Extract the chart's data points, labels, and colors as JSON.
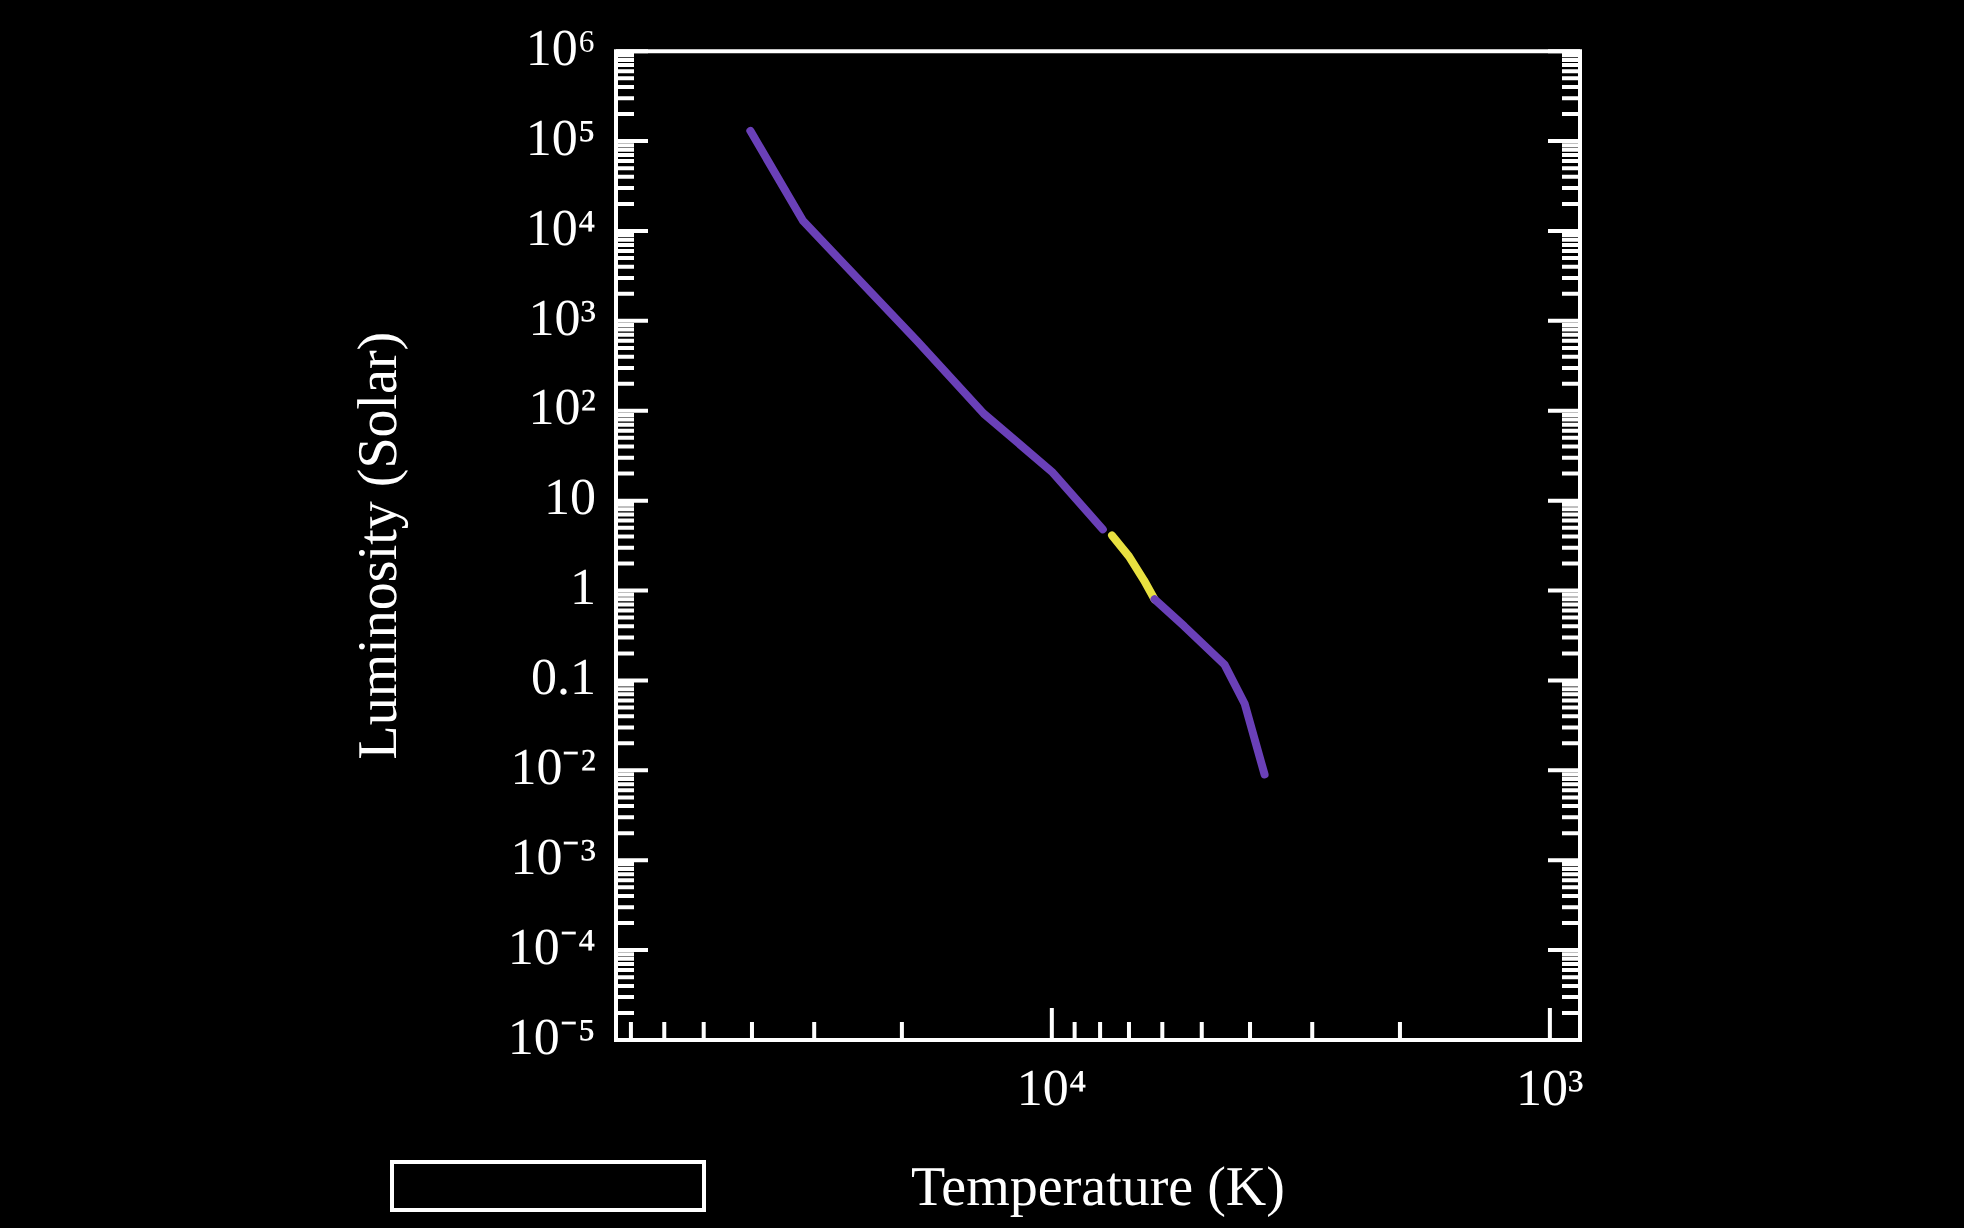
{
  "chart_data": {
    "type": "line",
    "xlabel": "Temperature (K)",
    "ylabel": "Luminosity (Solar)",
    "log": "xy",
    "marker": "none",
    "line_style": "solid",
    "grid": false,
    "legend": false,
    "xlim": [
      75000,
      870
    ],
    "xticks": [
      {
        "value": 70000,
        "label": null
      },
      {
        "value": 60000,
        "label": null
      },
      {
        "value": 50000,
        "label": null
      },
      {
        "value": 40000,
        "label": null
      },
      {
        "value": 30000,
        "label": null
      },
      {
        "value": 20000,
        "label": null
      },
      {
        "value": 10000,
        "label": "10⁴"
      },
      {
        "value": 9000,
        "label": null
      },
      {
        "value": 8000,
        "label": null
      },
      {
        "value": 7000,
        "label": null
      },
      {
        "value": 6000,
        "label": null
      },
      {
        "value": 5000,
        "label": null
      },
      {
        "value": 4000,
        "label": null
      },
      {
        "value": 3000,
        "label": null
      },
      {
        "value": 2000,
        "label": null
      },
      {
        "value": 1000,
        "label": "10³"
      }
    ],
    "ylim": [
      1e-05,
      1000000.0
    ],
    "yticks": [
      {
        "value": 1e-05,
        "label": "10⁻⁵"
      },
      {
        "value": 2e-05,
        "label": null
      },
      {
        "value": 3e-05,
        "label": null
      },
      {
        "value": 4e-05,
        "label": null
      },
      {
        "value": 5e-05,
        "label": null
      },
      {
        "value": 6e-05,
        "label": null
      },
      {
        "value": 7e-05,
        "label": null
      },
      {
        "value": 8e-05,
        "label": null
      },
      {
        "value": 9e-05,
        "label": null
      },
      {
        "value": 0.0001,
        "label": "10⁻⁴"
      },
      {
        "value": 0.0002,
        "label": null
      },
      {
        "value": 0.0003,
        "label": null
      },
      {
        "value": 0.0004,
        "label": null
      },
      {
        "value": 0.0005,
        "label": null
      },
      {
        "value": 0.0006,
        "label": null
      },
      {
        "value": 0.0007,
        "label": null
      },
      {
        "value": 0.0008,
        "label": null
      },
      {
        "value": 0.0009,
        "label": null
      },
      {
        "value": 0.001,
        "label": "10⁻³"
      },
      {
        "value": 0.002,
        "label": null
      },
      {
        "value": 0.003,
        "label": null
      },
      {
        "value": 0.004,
        "label": null
      },
      {
        "value": 0.005,
        "label": null
      },
      {
        "value": 0.006,
        "label": null
      },
      {
        "value": 0.007,
        "label": null
      },
      {
        "value": 0.008,
        "label": null
      },
      {
        "value": 0.009,
        "label": null
      },
      {
        "value": 0.01,
        "label": "10⁻²"
      },
      {
        "value": 0.02,
        "label": null
      },
      {
        "value": 0.03,
        "label": null
      },
      {
        "value": 0.04,
        "label": null
      },
      {
        "value": 0.05,
        "label": null
      },
      {
        "value": 0.06,
        "label": null
      },
      {
        "value": 0.07,
        "label": null
      },
      {
        "value": 0.08,
        "label": null
      },
      {
        "value": 0.09,
        "label": null
      },
      {
        "value": 0.1,
        "label": "0.1"
      },
      {
        "value": 0.2,
        "label": null
      },
      {
        "value": 0.3,
        "label": null
      },
      {
        "value": 0.4,
        "label": null
      },
      {
        "value": 0.5,
        "label": null
      },
      {
        "value": 0.6,
        "label": null
      },
      {
        "value": 0.7,
        "label": null
      },
      {
        "value": 0.8,
        "label": null
      },
      {
        "value": 0.9,
        "label": null
      },
      1,
      {
        "value": 2,
        "label": null
      },
      {
        "value": 3,
        "label": null
      },
      {
        "value": 4,
        "label": null
      },
      {
        "value": 5,
        "label": null
      },
      {
        "value": 6,
        "label": null
      },
      {
        "value": 7,
        "label": null
      },
      {
        "value": 8,
        "label": null
      },
      {
        "value": 9,
        "label": null
      },
      10,
      {
        "value": 20,
        "label": null
      },
      {
        "value": 30,
        "label": null
      },
      {
        "value": 40,
        "label": null
      },
      {
        "value": 50,
        "label": null
      },
      {
        "value": 60,
        "label": null
      },
      {
        "value": 70,
        "label": null
      },
      {
        "value": 80,
        "label": null
      },
      {
        "value": 90,
        "label": null
      },
      {
        "value": 100,
        "label": "10²"
      },
      {
        "value": 200,
        "label": null
      },
      {
        "value": 300,
        "label": null
      },
      {
        "value": 400,
        "label": null
      },
      {
        "value": 500,
        "label": null
      },
      {
        "value": 600,
        "label": null
      },
      {
        "value": 700,
        "label": null
      },
      {
        "value": 800,
        "label": null
      },
      {
        "value": 900,
        "label": null
      },
      {
        "value": 1000,
        "label": "10³"
      },
      {
        "value": 2000,
        "label": null
      },
      {
        "value": 3000,
        "label": null
      },
      {
        "value": 4000,
        "label": null
      },
      {
        "value": 5000,
        "label": null
      },
      {
        "value": 6000,
        "label": null
      },
      {
        "value": 7000,
        "label": null
      },
      {
        "value": 8000,
        "label": null
      },
      {
        "value": 9000,
        "label": null
      },
      {
        "value": 10000,
        "label": "10⁴"
      },
      {
        "value": 20000,
        "label": null
      },
      {
        "value": 30000,
        "label": null
      },
      {
        "value": 40000,
        "label": null
      },
      {
        "value": 50000,
        "label": null
      },
      {
        "value": 60000,
        "label": null
      },
      {
        "value": 70000,
        "label": null
      },
      {
        "value": 80000,
        "label": null
      },
      {
        "value": 90000,
        "label": null
      },
      {
        "value": 100000,
        "label": "10⁵"
      },
      {
        "value": 200000,
        "label": null
      },
      {
        "value": 300000,
        "label": null
      },
      {
        "value": 400000,
        "label": null
      },
      {
        "value": 500000,
        "label": null
      },
      {
        "value": 600000,
        "label": null
      },
      {
        "value": 700000,
        "label": null
      },
      {
        "value": 800000,
        "label": null
      },
      {
        "value": 900000,
        "label": null
      },
      {
        "value": 1000000,
        "label": "10⁶"
      }
    ],
    "series": [
      {
        "color": "#6a40b8",
        "x": [
          40300,
          31600,
          24000,
          18600,
          13700,
          10000,
          7900,
          7570,
          6220,
          5420,
          4500,
          4100,
          3740
        ],
        "values": [
          130000,
          13000,
          2600,
          590,
          93,
          21,
          4.8,
          null,
          0.8,
          0.4,
          0.15,
          0.055,
          0.009
        ]
      },
      {
        "color": "#e8e040",
        "x": [
          7570,
          7000,
          6530,
          6220
        ],
        "values": [
          4.1,
          2.4,
          1.3,
          0.8
        ]
      }
    ]
  }
}
